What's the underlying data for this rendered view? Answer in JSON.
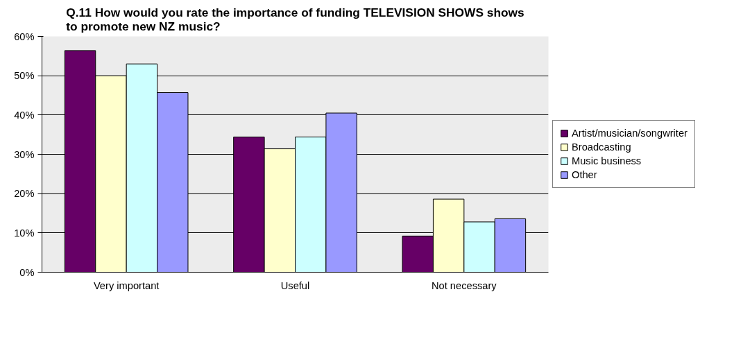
{
  "chart_data": {
    "type": "bar",
    "title": "Q.11 How would you rate the importance of funding TELEVISION SHOWS shows\nto promote new NZ music?",
    "categories": [
      "Very important",
      "Useful",
      "Not necessary"
    ],
    "series": [
      {
        "name": "Artist/musician/songwriter",
        "color": "#660066",
        "values": [
          56.4,
          34.4,
          9.2
        ]
      },
      {
        "name": "Broadcasting",
        "color": "#ffffcc",
        "values": [
          50.0,
          31.4,
          18.6
        ]
      },
      {
        "name": "Music business",
        "color": "#ccffff",
        "values": [
          53.0,
          34.4,
          12.8
        ]
      },
      {
        "name": "Other",
        "color": "#9999ff",
        "values": [
          45.7,
          40.5,
          13.6
        ]
      }
    ],
    "ylim": [
      0,
      60
    ],
    "yticks": [
      {
        "value": 0,
        "label": "0%"
      },
      {
        "value": 10,
        "label": "10%"
      },
      {
        "value": 20,
        "label": "20%"
      },
      {
        "value": 30,
        "label": "30%"
      },
      {
        "value": 40,
        "label": "40%"
      },
      {
        "value": 50,
        "label": "50%"
      },
      {
        "value": 60,
        "label": "60%"
      }
    ],
    "grid": "y",
    "legend": "right"
  }
}
